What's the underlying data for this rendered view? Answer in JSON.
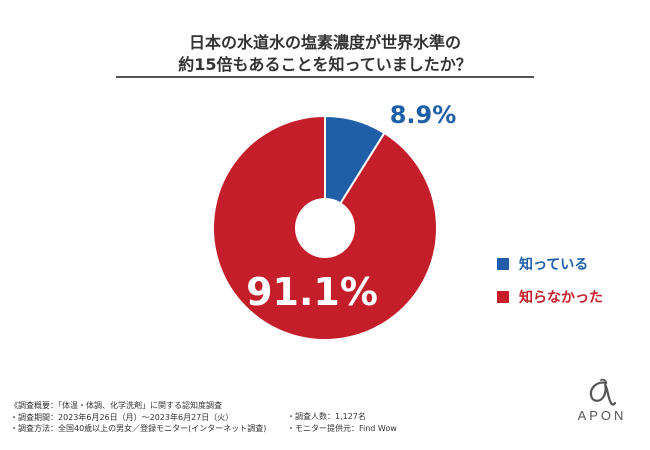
{
  "title": {
    "line1": "日本の水道水の塩素濃度が世界水準の",
    "line2": "約15倍もあることを知っていましたか？"
  },
  "chart_data": {
    "type": "pie",
    "style": "donut",
    "series": [
      {
        "name": "知っている",
        "value": 8.9,
        "label": "8.9%",
        "color": "#1e5fa8"
      },
      {
        "name": "知らなかった",
        "value": 91.1,
        "label": "91.1%",
        "color": "#c41e2a"
      }
    ],
    "legend_placement": "right"
  },
  "legend": [
    {
      "label": "知っている",
      "color": "#1e5fa8"
    },
    {
      "label": "知らなかった",
      "color": "#c41e2a"
    }
  ],
  "footnotes": {
    "left": [
      "《調査概要：「体温・体調、化学洗剤」に関する認知度調査",
      "・調査期間：2023年6月26日（月）～2023年6月27日（火）",
      "・調査方法：全国40歳以上の男女／登録モニター(インターネット調査)"
    ],
    "right": [
      "・調査人数：1,127名",
      "・モニター提供元：Find Wow"
    ]
  },
  "logo": {
    "text": "APON",
    "icon": "apon-script-logo-icon"
  },
  "colors": {
    "blue": "#1e5fa8",
    "red": "#c41e2a",
    "label_blue": "#1e5fa8"
  }
}
